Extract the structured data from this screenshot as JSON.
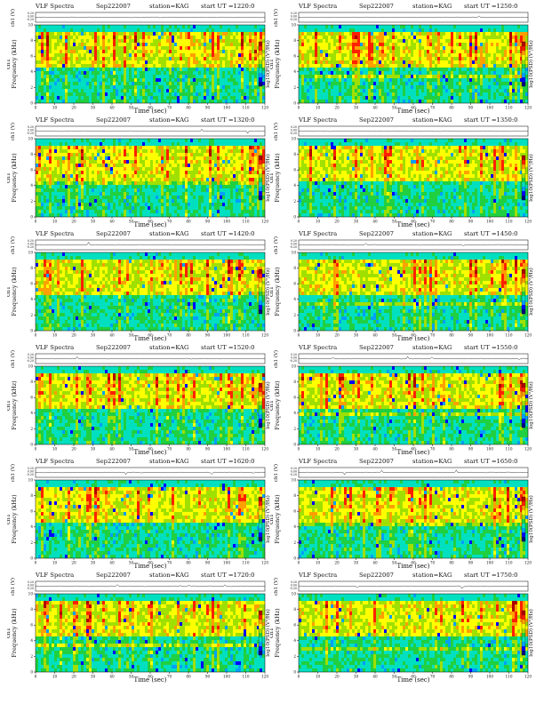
{
  "header": {
    "title": "VLF Spectra",
    "date": "Sep222007",
    "station": "station=KAG"
  },
  "axes": {
    "xlabel": "Time (sec)",
    "ylabel_freq": "Frequency (kHz)",
    "ylabel_ts": "ch1 (V)",
    "ylabel_ch": "ch1",
    "cbar_label": "log10(PSD) (V²/Hz)"
  },
  "colormap": [
    "#000080",
    "#0000ff",
    "#00a0ff",
    "#00e0c0",
    "#20d040",
    "#a0e000",
    "#ffff00",
    "#ffa000",
    "#ff2000",
    "#b00000"
  ],
  "chart_data": [
    {
      "type": "heatmap",
      "start_ut": "start UT =1220:0",
      "xlim": [
        0,
        120
      ],
      "ylim": [
        0,
        10
      ],
      "xticks": [
        0,
        10,
        20,
        30,
        40,
        50,
        60,
        70,
        80,
        90,
        100,
        110,
        120
      ],
      "yticks": [
        0,
        2,
        4,
        6,
        8,
        10
      ],
      "ts_ylim": [
        -0.2,
        0.2
      ],
      "ts_ticks": [
        "0.20",
        "0.00",
        "-0.20"
      ]
    },
    {
      "type": "heatmap",
      "start_ut": "start UT =1250:0",
      "xlim": [
        0,
        120
      ],
      "ylim": [
        0,
        10
      ],
      "xticks": [
        0,
        10,
        20,
        30,
        40,
        50,
        60,
        70,
        80,
        90,
        100,
        110,
        120
      ],
      "yticks": [
        0,
        2,
        4,
        6,
        8,
        10
      ],
      "ts_ylim": [
        -0.2,
        0.2
      ],
      "ts_ticks": [
        "0.20",
        "0.00",
        "-0.20"
      ]
    },
    {
      "type": "heatmap",
      "start_ut": "start UT =1320:0",
      "xlim": [
        0,
        120
      ],
      "ylim": [
        0,
        10
      ],
      "xticks": [
        0,
        10,
        20,
        30,
        40,
        50,
        60,
        70,
        80,
        90,
        100,
        110,
        120
      ],
      "yticks": [
        0,
        2,
        4,
        6,
        8,
        10
      ],
      "ts_ylim": [
        -0.2,
        0.2
      ],
      "ts_ticks": [
        "0.20",
        "0.00",
        "-0.20"
      ]
    },
    {
      "type": "heatmap",
      "start_ut": "start UT =1350:0",
      "xlim": [
        0,
        120
      ],
      "ylim": [
        0,
        10
      ],
      "xticks": [
        0,
        10,
        20,
        30,
        40,
        50,
        60,
        70,
        80,
        90,
        100,
        110,
        120
      ],
      "yticks": [
        0,
        2,
        4,
        6,
        8,
        10
      ],
      "ts_ylim": [
        -0.2,
        0.2
      ],
      "ts_ticks": [
        "0.20",
        "0.00",
        "-0.20"
      ]
    },
    {
      "type": "heatmap",
      "start_ut": "start UT =1420:0",
      "xlim": [
        0,
        120
      ],
      "ylim": [
        0,
        10
      ],
      "xticks": [
        0,
        10,
        20,
        30,
        40,
        50,
        60,
        70,
        80,
        90,
        100,
        110,
        120
      ],
      "yticks": [
        0,
        2,
        4,
        6,
        8,
        10
      ],
      "ts_ylim": [
        -0.2,
        0.2
      ],
      "ts_ticks": [
        "0.20",
        "0.00",
        "-0.20"
      ]
    },
    {
      "type": "heatmap",
      "start_ut": "start UT =1450:0",
      "xlim": [
        0,
        120
      ],
      "ylim": [
        0,
        10
      ],
      "xticks": [
        0,
        10,
        20,
        30,
        40,
        50,
        60,
        70,
        80,
        90,
        100,
        110,
        120
      ],
      "yticks": [
        0,
        2,
        4,
        6,
        8,
        10
      ],
      "ts_ylim": [
        -0.2,
        0.2
      ],
      "ts_ticks": [
        "0.20",
        "0.00",
        "-0.20"
      ]
    },
    {
      "type": "heatmap",
      "start_ut": "start UT =1520:0",
      "xlim": [
        0,
        120
      ],
      "ylim": [
        0,
        10
      ],
      "xticks": [
        0,
        10,
        20,
        30,
        40,
        50,
        60,
        70,
        80,
        90,
        100,
        110,
        120
      ],
      "yticks": [
        0,
        2,
        4,
        6,
        8,
        10
      ],
      "ts_ylim": [
        -0.2,
        0.2
      ],
      "ts_ticks": [
        "0.20",
        "0.00",
        "-0.20"
      ]
    },
    {
      "type": "heatmap",
      "start_ut": "start UT =1550:0",
      "xlim": [
        0,
        120
      ],
      "ylim": [
        0,
        10
      ],
      "xticks": [
        0,
        10,
        20,
        30,
        40,
        50,
        60,
        70,
        80,
        90,
        100,
        110,
        120
      ],
      "yticks": [
        0,
        2,
        4,
        6,
        8,
        10
      ],
      "ts_ylim": [
        -0.2,
        0.2
      ],
      "ts_ticks": [
        "0.20",
        "0.00",
        "-0.20"
      ]
    },
    {
      "type": "heatmap",
      "start_ut": "start UT =1620:0",
      "xlim": [
        0,
        120
      ],
      "ylim": [
        0,
        10
      ],
      "xticks": [
        0,
        10,
        20,
        30,
        40,
        50,
        60,
        70,
        80,
        90,
        100,
        110,
        120
      ],
      "yticks": [
        0,
        2,
        4,
        6,
        8,
        10
      ],
      "ts_ylim": [
        -0.2,
        0.2
      ],
      "ts_ticks": [
        "0.20",
        "0.00",
        "-0.20"
      ]
    },
    {
      "type": "heatmap",
      "start_ut": "start UT =1650:0",
      "xlim": [
        0,
        120
      ],
      "ylim": [
        0,
        10
      ],
      "xticks": [
        0,
        10,
        20,
        30,
        40,
        50,
        60,
        70,
        80,
        90,
        100,
        110,
        120
      ],
      "yticks": [
        0,
        2,
        4,
        6,
        8,
        10
      ],
      "ts_ylim": [
        -0.2,
        0.2
      ],
      "ts_ticks": [
        "0.20",
        "0.00",
        "-0.20"
      ]
    },
    {
      "type": "heatmap",
      "start_ut": "start UT =1720:0",
      "xlim": [
        0,
        120
      ],
      "ylim": [
        0,
        10
      ],
      "xticks": [
        0,
        10,
        20,
        30,
        40,
        50,
        60,
        70,
        80,
        90,
        100,
        110,
        120
      ],
      "yticks": [
        0,
        2,
        4,
        6,
        8,
        10
      ],
      "ts_ylim": [
        -0.2,
        0.2
      ],
      "ts_ticks": [
        "0.20",
        "0.00",
        "-0.20"
      ]
    },
    {
      "type": "heatmap",
      "start_ut": "start UT =1750:0",
      "xlim": [
        0,
        120
      ],
      "ylim": [
        0,
        10
      ],
      "xticks": [
        0,
        10,
        20,
        30,
        40,
        50,
        60,
        70,
        80,
        90,
        100,
        110,
        120
      ],
      "yticks": [
        0,
        2,
        4,
        6,
        8,
        10
      ],
      "ts_ylim": [
        -0.2,
        0.2
      ],
      "ts_ticks": [
        "0.20",
        "0.00",
        "-0.20"
      ]
    }
  ]
}
